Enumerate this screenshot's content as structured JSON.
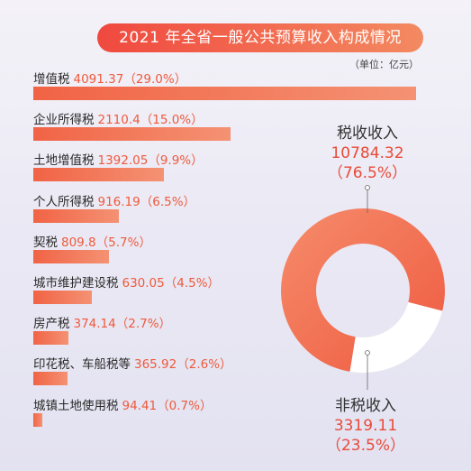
{
  "title": "2021 年全省一般公共预算收入构成情况",
  "unit": "（单位：亿元）",
  "colors": {
    "accent": "#f0493f",
    "bar_start": "#f16345",
    "bar_end": "#f49273",
    "value_text": "#ee5a3c",
    "donut_primary": "#f26d4f",
    "donut_secondary": "#ffffff"
  },
  "chart_data": [
    {
      "type": "bar",
      "orientation": "horizontal",
      "categories": [
        "增值税",
        "企业所得税",
        "土地增值税",
        "个人所得税",
        "契税",
        "城市维护建设税",
        "房产税",
        "印花税、车船税等",
        "城镇土地使用税"
      ],
      "values": [
        4091.37,
        2110.4,
        1392.05,
        916.19,
        809.8,
        630.05,
        374.14,
        365.92,
        94.41
      ],
      "value_labels": [
        "4091.37（29.0%）",
        "2110.4（15.0%）",
        "1392.05（9.9%）",
        "916.19（6.5%）",
        "809.8（5.7%）",
        "630.05（4.5%）",
        "374.14（2.7%）",
        "365.92（2.6%）",
        "94.41（0.7%）"
      ],
      "percentages": [
        29.0,
        15.0,
        9.9,
        6.5,
        5.7,
        4.5,
        2.7,
        2.6,
        0.7
      ],
      "xlim": [
        0,
        4091.37
      ]
    },
    {
      "type": "pie",
      "style": "donut",
      "slices": [
        {
          "name": "税收收入",
          "value": 10784.32,
          "value_label": "10784.32",
          "percent_label": "（76.5%）",
          "percent": 76.5
        },
        {
          "name": "非税收入",
          "value": 3319.11,
          "value_label": "3319.11",
          "percent_label": "（23.5%）",
          "percent": 23.5
        }
      ]
    }
  ]
}
